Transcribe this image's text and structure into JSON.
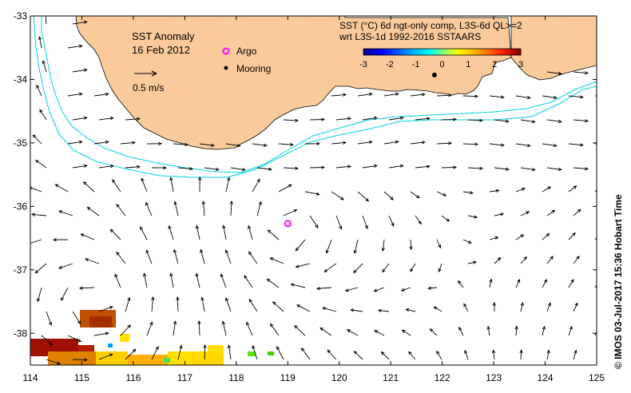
{
  "map": {
    "title": "SST Anomaly",
    "date": "16 Feb 2012",
    "scale_label": "0.5 m/s",
    "legend": {
      "argo_label": "Argo",
      "mooring_label": "Mooring",
      "argo_color": "#ff00ff",
      "mooring_color": "#000000"
    },
    "product_line1": "SST (°C) 6d ngt-only comp, L3S-6d QL>=2",
    "product_line2": "wrt L3S-1d 1992-2016 SSTAARS",
    "credit": "© IMOS 03-Jul-2017 15:36 Hobart Time",
    "land_color": "#fbcb9b",
    "contour_color": "#00d0e0"
  },
  "axes": {
    "lon_ticks": [
      "114",
      "115",
      "116",
      "117",
      "118",
      "119",
      "120",
      "121",
      "122",
      "123",
      "124",
      "125"
    ],
    "lat_ticks": [
      "-33",
      "-34",
      "-35",
      "-36",
      "-37",
      "-38"
    ],
    "lon_range": [
      114,
      125
    ],
    "lat_range": [
      -38.5,
      -33
    ]
  },
  "colorbar": {
    "ticks": [
      "-3",
      "-2",
      "-1",
      "0",
      "1",
      "2",
      "3"
    ],
    "range": [
      -3,
      3
    ]
  },
  "argo_float": {
    "lon": 119.0,
    "lat": -36.27
  },
  "mooring": {
    "lon": 121.85,
    "lat": -33.93
  }
}
